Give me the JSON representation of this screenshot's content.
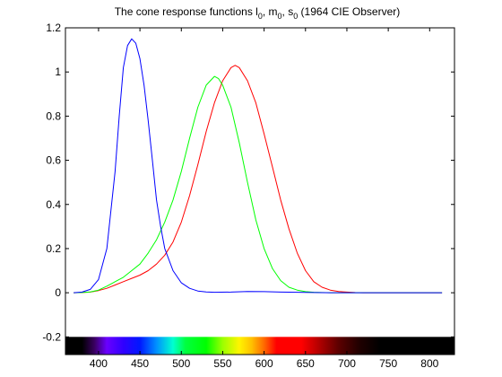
{
  "chart_data": {
    "type": "line",
    "title": {
      "prefix": "The cone response functions l",
      "sub1": "0",
      "mid1": ", m",
      "sub2": "0",
      "mid2": ", s",
      "sub3": "0",
      "suffix": " (1964 CIE Observer)"
    },
    "xlabel": "",
    "ylabel": "",
    "xlim": [
      360,
      830
    ],
    "ylim": [
      -0.28,
      1.2
    ],
    "x_ticks": [
      400,
      450,
      500,
      550,
      600,
      650,
      700,
      750,
      800
    ],
    "x_tick_labels": [
      "400",
      "450",
      "500",
      "550",
      "600",
      "650",
      "700",
      "750",
      "800"
    ],
    "y_ticks": [
      -0.2,
      0,
      0.2,
      0.4,
      0.6,
      0.8,
      1,
      1.2
    ],
    "y_tick_labels": [
      "-0.2",
      "0",
      "0.2",
      "0.4",
      "0.6",
      "0.8",
      "1",
      "1.2"
    ],
    "grid": false,
    "legend": false,
    "spectrum_bar": {
      "y_range": [
        -0.28,
        -0.2
      ],
      "stops": [
        {
          "wl": 360,
          "color": "#000000"
        },
        {
          "wl": 380,
          "color": "#000000"
        },
        {
          "wl": 395,
          "color": "#3a0060"
        },
        {
          "wl": 410,
          "color": "#6a00ff"
        },
        {
          "wl": 430,
          "color": "#3000ff"
        },
        {
          "wl": 450,
          "color": "#0018ff"
        },
        {
          "wl": 470,
          "color": "#0090ff"
        },
        {
          "wl": 490,
          "color": "#00ffd0"
        },
        {
          "wl": 505,
          "color": "#00ff40"
        },
        {
          "wl": 530,
          "color": "#00ff00"
        },
        {
          "wl": 550,
          "color": "#9cff00"
        },
        {
          "wl": 570,
          "color": "#fff400"
        },
        {
          "wl": 585,
          "color": "#ffc000"
        },
        {
          "wl": 600,
          "color": "#ff6a00"
        },
        {
          "wl": 615,
          "color": "#ff0000"
        },
        {
          "wl": 645,
          "color": "#ff0000"
        },
        {
          "wl": 665,
          "color": "#b80000"
        },
        {
          "wl": 690,
          "color": "#5c0000"
        },
        {
          "wl": 715,
          "color": "#200000"
        },
        {
          "wl": 740,
          "color": "#000000"
        },
        {
          "wl": 830,
          "color": "#000000"
        }
      ]
    },
    "series": [
      {
        "color": "#ff0000",
        "x": [
          370,
          380,
          390,
          400,
          410,
          420,
          430,
          440,
          450,
          460,
          470,
          480,
          490,
          500,
          510,
          520,
          530,
          540,
          550,
          560,
          565,
          570,
          580,
          590,
          600,
          610,
          620,
          630,
          640,
          650,
          660,
          670,
          680,
          690,
          700,
          710,
          720,
          740,
          760,
          780,
          800,
          815
        ],
        "y": [
          0,
          0.001,
          0.003,
          0.01,
          0.02,
          0.035,
          0.05,
          0.065,
          0.08,
          0.1,
          0.13,
          0.17,
          0.23,
          0.32,
          0.44,
          0.58,
          0.73,
          0.86,
          0.96,
          1.02,
          1.03,
          1.02,
          0.96,
          0.86,
          0.72,
          0.57,
          0.42,
          0.29,
          0.18,
          0.1,
          0.05,
          0.025,
          0.012,
          0.006,
          0.003,
          0.001,
          0,
          0,
          0,
          0,
          0,
          0
        ]
      },
      {
        "color": "#00ff00",
        "x": [
          370,
          380,
          390,
          400,
          410,
          420,
          430,
          440,
          450,
          460,
          470,
          480,
          490,
          500,
          510,
          520,
          530,
          540,
          545,
          550,
          560,
          570,
          580,
          590,
          600,
          610,
          620,
          630,
          640,
          650,
          660,
          670,
          680,
          690,
          700,
          720,
          740,
          760,
          780,
          800,
          815
        ],
        "y": [
          0,
          0.001,
          0.004,
          0.012,
          0.03,
          0.05,
          0.07,
          0.1,
          0.13,
          0.18,
          0.24,
          0.32,
          0.42,
          0.55,
          0.7,
          0.84,
          0.94,
          0.98,
          0.97,
          0.94,
          0.84,
          0.68,
          0.5,
          0.33,
          0.2,
          0.11,
          0.055,
          0.025,
          0.012,
          0.005,
          0.002,
          0.001,
          0,
          0,
          0,
          0,
          0,
          0,
          0,
          0,
          0
        ]
      },
      {
        "color": "#0000ff",
        "x": [
          370,
          380,
          390,
          400,
          410,
          420,
          425,
          430,
          435,
          440,
          445,
          450,
          455,
          460,
          465,
          470,
          475,
          480,
          490,
          500,
          510,
          520,
          530,
          540,
          560,
          580,
          600,
          620,
          640,
          660,
          680,
          700,
          720,
          740,
          760,
          780,
          800,
          815
        ],
        "y": [
          0,
          0.003,
          0.015,
          0.06,
          0.2,
          0.55,
          0.8,
          1.02,
          1.12,
          1.15,
          1.13,
          1.06,
          0.94,
          0.78,
          0.6,
          0.42,
          0.3,
          0.2,
          0.1,
          0.045,
          0.02,
          0.008,
          0.004,
          0.002,
          0.003,
          0.006,
          0.005,
          0.003,
          0.002,
          0.001,
          0,
          0,
          0,
          0,
          0,
          0,
          0,
          0
        ]
      }
    ]
  }
}
